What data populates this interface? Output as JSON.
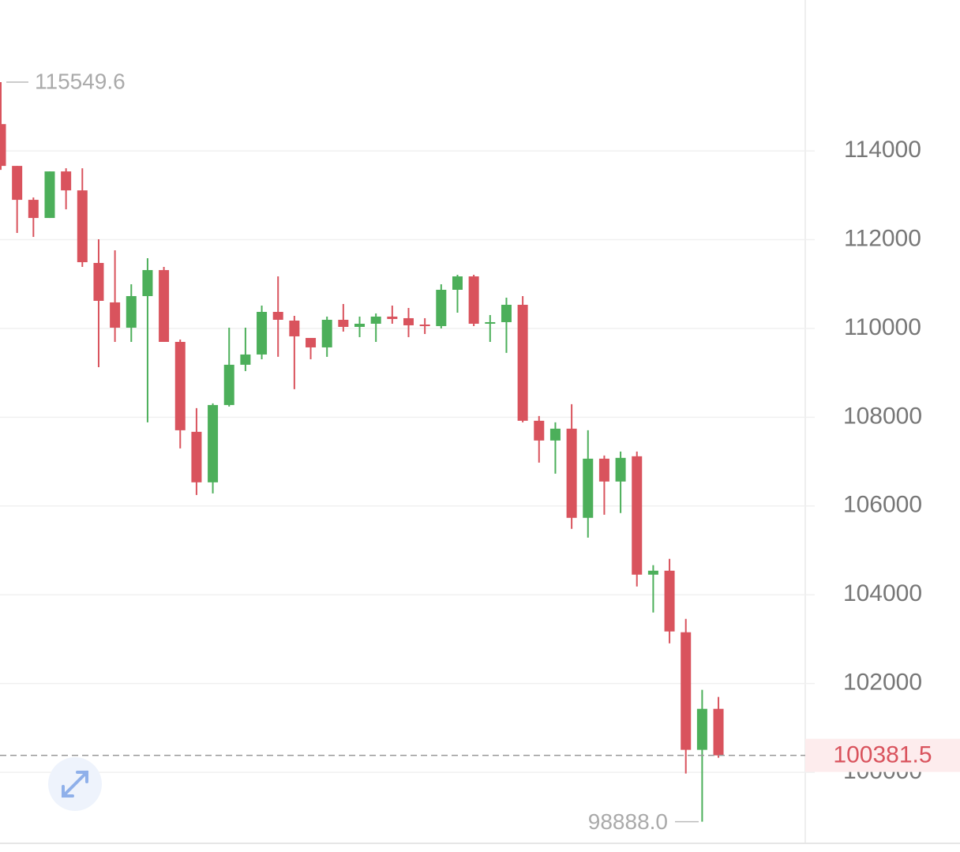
{
  "chart_data": {
    "type": "candlestick",
    "open": [
      114604,
      113662,
      112898,
      112489,
      113538,
      113111,
      111476,
      110587,
      110017,
      110729,
      111315,
      109697,
      107671,
      106533,
      108275,
      109182,
      109413,
      110373,
      110177,
      109786,
      109573,
      110195,
      110035,
      110106,
      110267,
      110231,
      110088,
      110053,
      110871,
      111173,
      110106,
      110142,
      110533,
      107920,
      107475,
      107742,
      105733,
      107066,
      106551,
      107120,
      104453,
      104542,
      103155,
      100506,
      101430
    ],
    "high": [
      115549.6,
      113662,
      112951,
      113538,
      113609,
      113609,
      112009,
      111760,
      110995,
      111582,
      111386,
      109751,
      108204,
      108311,
      110017,
      110017,
      110515,
      111173,
      110284,
      109786,
      110267,
      110551,
      110267,
      110338,
      110515,
      110462,
      110231,
      110995,
      111209,
      111209,
      110302,
      110693,
      110729,
      108027,
      107884,
      108293,
      107706,
      107138,
      107226,
      107226,
      104667,
      104809,
      103457,
      101857,
      101697
    ],
    "low": [
      113573,
      112151,
      112062,
      112489,
      112684,
      111386,
      109128,
      109697,
      109697,
      107884,
      109697,
      107297,
      106248,
      106284,
      108240,
      109040,
      109306,
      109360,
      108631,
      109306,
      109360,
      109929,
      109804,
      109697,
      110106,
      109804,
      109875,
      110000,
      110355,
      110053,
      109697,
      109449,
      107884,
      106977,
      106729,
      105484,
      105288,
      105804,
      105840,
      104186,
      103600,
      102906,
      99973,
      98888,
      100328
    ],
    "close": [
      113662,
      112898,
      112489,
      113538,
      113111,
      111493,
      110622,
      110017,
      110729,
      111315,
      109697,
      107706,
      106533,
      108275,
      109182,
      109413,
      110373,
      110195,
      109822,
      109573,
      110195,
      110035,
      110106,
      110267,
      110213,
      110071,
      110053,
      110871,
      111173,
      110106,
      110142,
      110533,
      107920,
      107475,
      107742,
      105733,
      107066,
      106551,
      107084,
      104453,
      104542,
      103173,
      100506,
      101430,
      100381.5
    ],
    "up_color": "#4caf5a",
    "down_color": "#d9535d",
    "ylim": [
      98400,
      117400
    ],
    "yticks": [
      100000,
      102000,
      104000,
      106000,
      108000,
      110000,
      112000,
      114000
    ],
    "grid": true,
    "high_marker": 115549.6,
    "low_marker": {
      "value": 98888,
      "label": "98888.0"
    },
    "last_price": 100381.5
  }
}
